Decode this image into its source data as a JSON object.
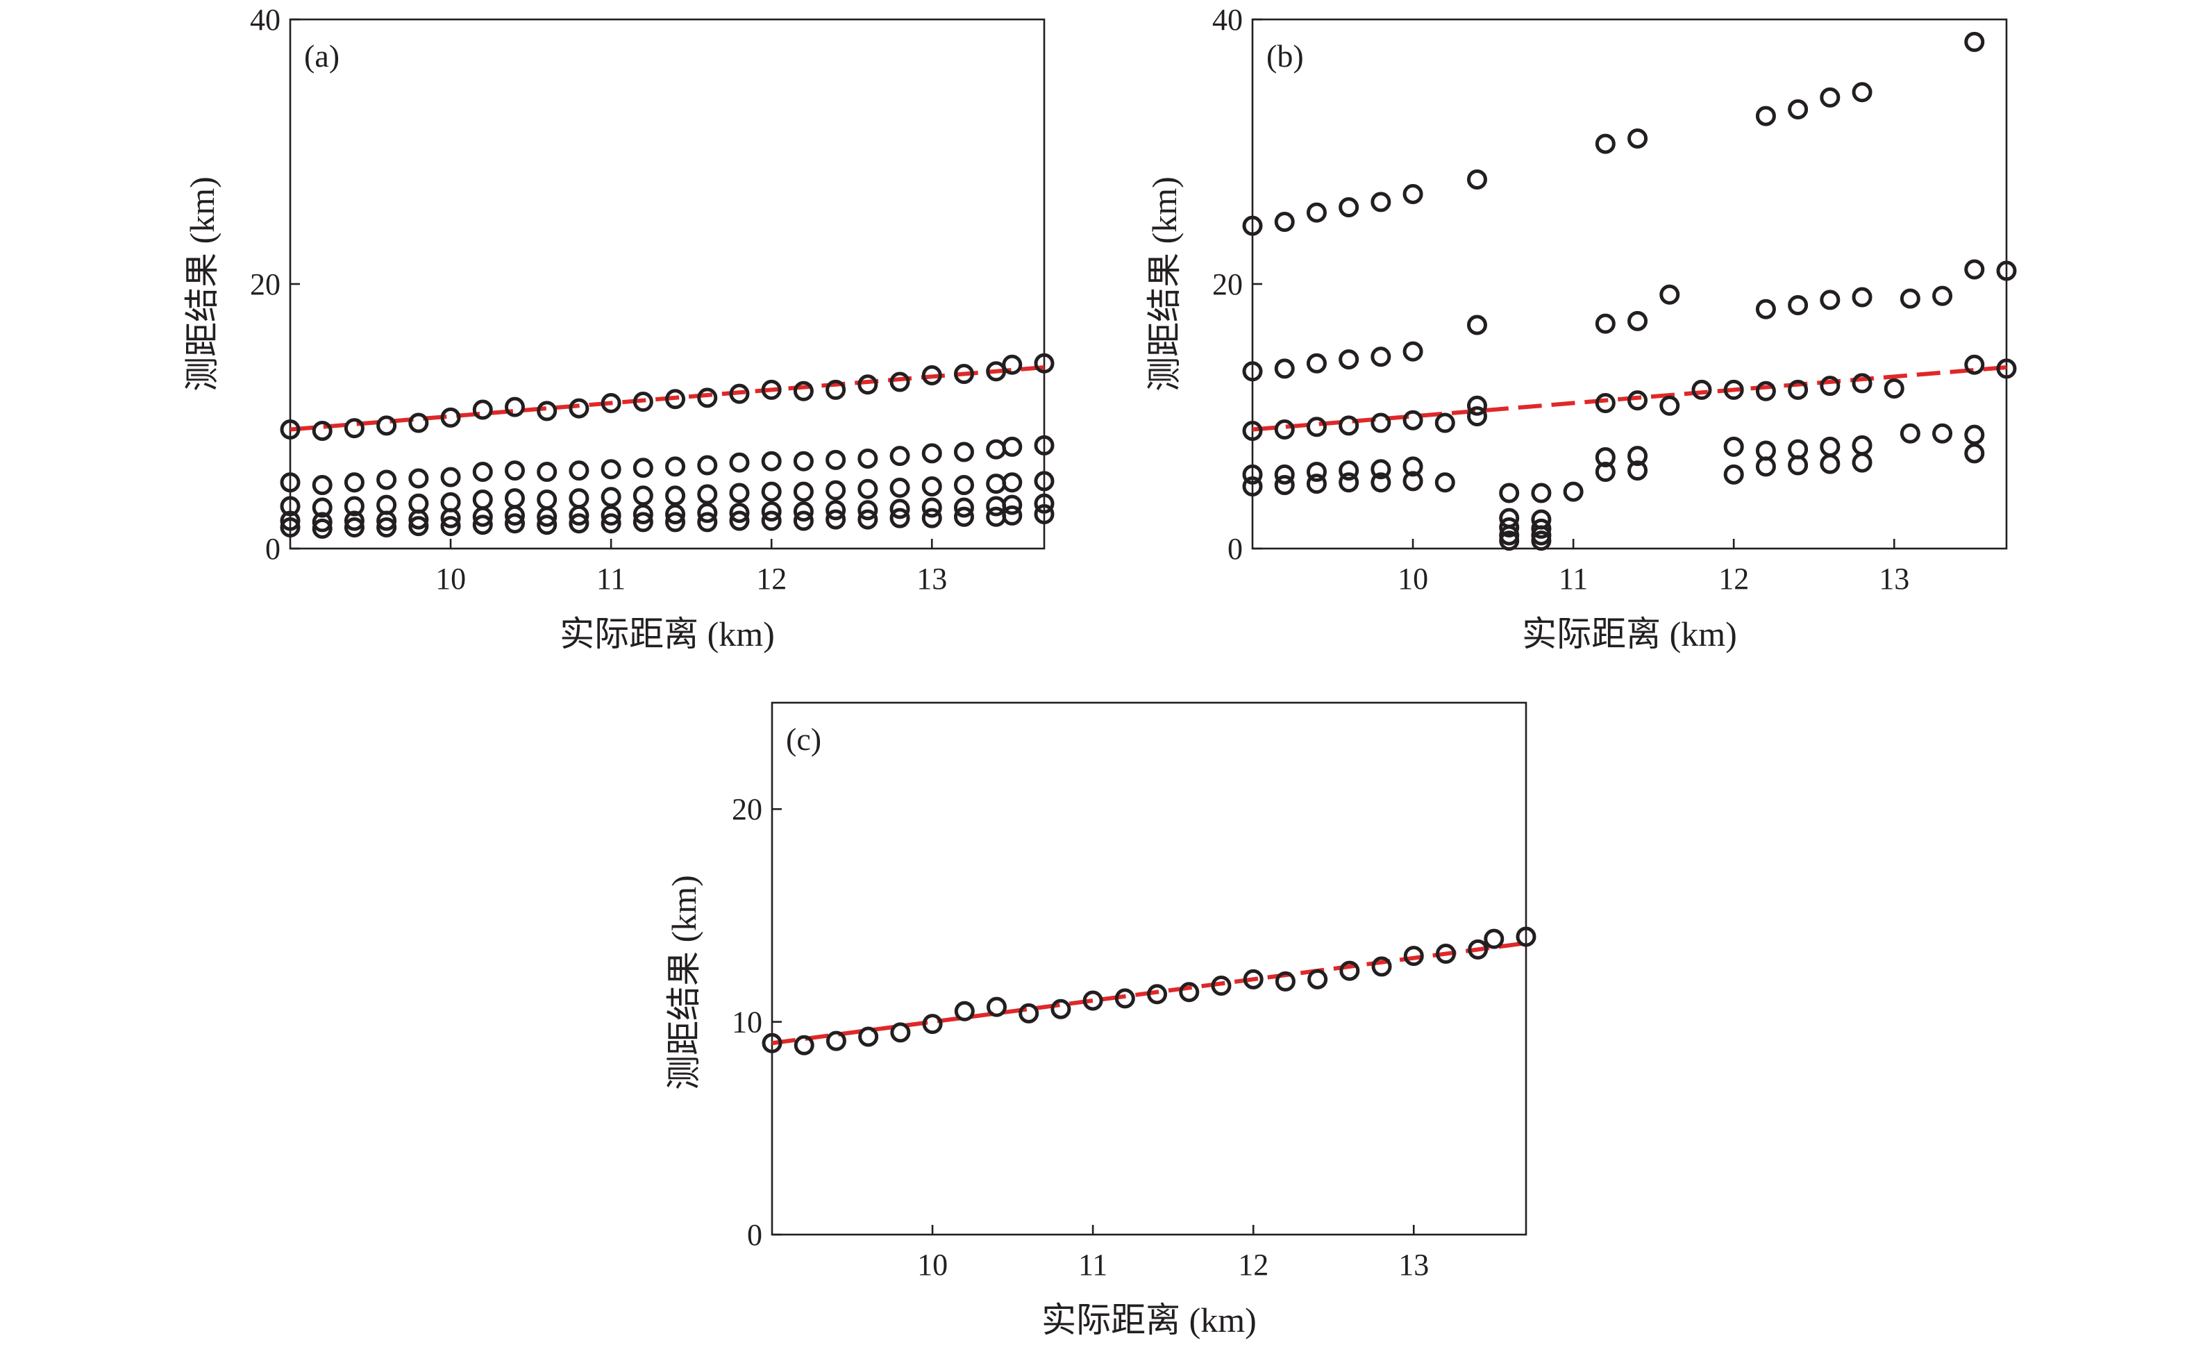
{
  "chart_data": [
    {
      "type": "scatter",
      "panel_label": "(a)",
      "xlabel": "实际距离 (km)",
      "ylabel": "测距结果 (km)",
      "xlim": [
        9.0,
        13.7
      ],
      "ylim": [
        0,
        40
      ],
      "xticks": [
        10,
        11,
        12,
        13
      ],
      "yticks": [
        0,
        20,
        40
      ],
      "points": [
        [
          9.0,
          9.0
        ],
        [
          9.2,
          8.9
        ],
        [
          9.4,
          9.1
        ],
        [
          9.6,
          9.3
        ],
        [
          9.8,
          9.5
        ],
        [
          10.0,
          9.9
        ],
        [
          10.2,
          10.5
        ],
        [
          10.4,
          10.7
        ],
        [
          10.6,
          10.4
        ],
        [
          10.8,
          10.6
        ],
        [
          11.0,
          11.0
        ],
        [
          11.2,
          11.1
        ],
        [
          11.4,
          11.3
        ],
        [
          11.6,
          11.4
        ],
        [
          11.8,
          11.7
        ],
        [
          12.0,
          12.0
        ],
        [
          12.2,
          11.9
        ],
        [
          12.4,
          12.0
        ],
        [
          12.6,
          12.4
        ],
        [
          12.8,
          12.6
        ],
        [
          13.0,
          13.1
        ],
        [
          13.2,
          13.2
        ],
        [
          13.4,
          13.4
        ],
        [
          13.5,
          13.9
        ],
        [
          13.7,
          14.0
        ],
        [
          9.0,
          5.0
        ],
        [
          9.2,
          4.8
        ],
        [
          9.4,
          5.0
        ],
        [
          9.6,
          5.2
        ],
        [
          9.8,
          5.3
        ],
        [
          10.0,
          5.4
        ],
        [
          10.2,
          5.8
        ],
        [
          10.4,
          5.9
        ],
        [
          10.6,
          5.8
        ],
        [
          10.8,
          5.9
        ],
        [
          11.0,
          6.0
        ],
        [
          11.2,
          6.1
        ],
        [
          11.4,
          6.2
        ],
        [
          11.6,
          6.3
        ],
        [
          11.8,
          6.5
        ],
        [
          12.0,
          6.6
        ],
        [
          12.2,
          6.6
        ],
        [
          12.4,
          6.7
        ],
        [
          12.6,
          6.8
        ],
        [
          12.8,
          7.0
        ],
        [
          13.0,
          7.2
        ],
        [
          13.2,
          7.3
        ],
        [
          13.4,
          7.5
        ],
        [
          13.5,
          7.7
        ],
        [
          13.7,
          7.8
        ],
        [
          9.0,
          3.2
        ],
        [
          9.2,
          3.1
        ],
        [
          9.4,
          3.2
        ],
        [
          9.6,
          3.3
        ],
        [
          9.8,
          3.4
        ],
        [
          10.0,
          3.5
        ],
        [
          10.2,
          3.7
        ],
        [
          10.4,
          3.8
        ],
        [
          10.6,
          3.7
        ],
        [
          10.8,
          3.8
        ],
        [
          11.0,
          3.9
        ],
        [
          11.2,
          4.0
        ],
        [
          11.4,
          4.0
        ],
        [
          11.6,
          4.1
        ],
        [
          11.8,
          4.2
        ],
        [
          12.0,
          4.3
        ],
        [
          12.2,
          4.3
        ],
        [
          12.4,
          4.4
        ],
        [
          12.6,
          4.5
        ],
        [
          12.8,
          4.6
        ],
        [
          13.0,
          4.7
        ],
        [
          13.2,
          4.8
        ],
        [
          13.4,
          4.9
        ],
        [
          13.5,
          5.0
        ],
        [
          13.7,
          5.1
        ],
        [
          9.0,
          2.1
        ],
        [
          9.2,
          2.0
        ],
        [
          9.4,
          2.1
        ],
        [
          9.6,
          2.1
        ],
        [
          9.8,
          2.2
        ],
        [
          10.0,
          2.3
        ],
        [
          10.2,
          2.4
        ],
        [
          10.4,
          2.5
        ],
        [
          10.6,
          2.4
        ],
        [
          10.8,
          2.5
        ],
        [
          11.0,
          2.5
        ],
        [
          11.2,
          2.6
        ],
        [
          11.4,
          2.6
        ],
        [
          11.6,
          2.7
        ],
        [
          11.8,
          2.7
        ],
        [
          12.0,
          2.8
        ],
        [
          12.2,
          2.8
        ],
        [
          12.4,
          2.9
        ],
        [
          12.6,
          2.9
        ],
        [
          12.8,
          3.0
        ],
        [
          13.0,
          3.1
        ],
        [
          13.2,
          3.1
        ],
        [
          13.4,
          3.2
        ],
        [
          13.5,
          3.3
        ],
        [
          13.7,
          3.4
        ],
        [
          9.0,
          1.6
        ],
        [
          9.2,
          1.5
        ],
        [
          9.4,
          1.6
        ],
        [
          9.6,
          1.6
        ],
        [
          9.8,
          1.7
        ],
        [
          10.0,
          1.7
        ],
        [
          10.2,
          1.8
        ],
        [
          10.4,
          1.9
        ],
        [
          10.6,
          1.8
        ],
        [
          10.8,
          1.9
        ],
        [
          11.0,
          1.9
        ],
        [
          11.2,
          2.0
        ],
        [
          11.4,
          2.0
        ],
        [
          11.6,
          2.0
        ],
        [
          11.8,
          2.1
        ],
        [
          12.0,
          2.1
        ],
        [
          12.2,
          2.1
        ],
        [
          12.4,
          2.2
        ],
        [
          12.6,
          2.2
        ],
        [
          12.8,
          2.3
        ],
        [
          13.0,
          2.3
        ],
        [
          13.2,
          2.4
        ],
        [
          13.4,
          2.4
        ],
        [
          13.5,
          2.5
        ],
        [
          13.7,
          2.6
        ]
      ],
      "fit_line": [
        [
          9.0,
          9.0
        ],
        [
          13.7,
          13.7
        ]
      ]
    },
    {
      "type": "scatter",
      "panel_label": "(b)",
      "xlabel": "实际距离 (km)",
      "ylabel": "测距结果 (km)",
      "xlim": [
        9.0,
        13.7
      ],
      "ylim": [
        0,
        40
      ],
      "xticks": [
        10,
        11,
        12,
        13
      ],
      "yticks": [
        0,
        20,
        40
      ],
      "points": [
        [
          9.0,
          24.4
        ],
        [
          9.2,
          24.7
        ],
        [
          9.4,
          25.4
        ],
        [
          9.6,
          25.8
        ],
        [
          9.8,
          26.2
        ],
        [
          10.0,
          26.8
        ],
        [
          10.4,
          27.9
        ],
        [
          11.2,
          30.6
        ],
        [
          11.4,
          31.0
        ],
        [
          12.2,
          32.7
        ],
        [
          12.4,
          33.2
        ],
        [
          12.6,
          34.1
        ],
        [
          12.8,
          34.5
        ],
        [
          13.5,
          38.3
        ],
        [
          9.0,
          13.4
        ],
        [
          9.2,
          13.6
        ],
        [
          9.4,
          14.0
        ],
        [
          9.6,
          14.3
        ],
        [
          9.8,
          14.5
        ],
        [
          10.0,
          14.9
        ],
        [
          10.4,
          16.9
        ],
        [
          11.2,
          17.0
        ],
        [
          11.4,
          17.2
        ],
        [
          11.6,
          19.2
        ],
        [
          12.2,
          18.1
        ],
        [
          12.4,
          18.4
        ],
        [
          12.6,
          18.8
        ],
        [
          12.8,
          19.0
        ],
        [
          13.1,
          18.9
        ],
        [
          13.3,
          19.1
        ],
        [
          13.5,
          21.1
        ],
        [
          13.7,
          21.0
        ],
        [
          9.0,
          8.9
        ],
        [
          9.2,
          9.0
        ],
        [
          9.4,
          9.2
        ],
        [
          9.6,
          9.3
        ],
        [
          9.8,
          9.5
        ],
        [
          10.0,
          9.7
        ],
        [
          10.2,
          9.5
        ],
        [
          10.4,
          10.0
        ],
        [
          10.4,
          10.8
        ],
        [
          11.2,
          11.0
        ],
        [
          11.4,
          11.2
        ],
        [
          11.6,
          10.8
        ],
        [
          11.8,
          12.0
        ],
        [
          12.0,
          12.0
        ],
        [
          12.2,
          11.9
        ],
        [
          12.4,
          12.0
        ],
        [
          12.6,
          12.3
        ],
        [
          12.8,
          12.5
        ],
        [
          13.0,
          12.1
        ],
        [
          13.5,
          13.9
        ],
        [
          13.7,
          13.6
        ],
        [
          9.0,
          5.6
        ],
        [
          9.2,
          5.6
        ],
        [
          9.4,
          5.8
        ],
        [
          9.6,
          5.9
        ],
        [
          9.8,
          6.0
        ],
        [
          10.0,
          6.2
        ],
        [
          11.2,
          6.9
        ],
        [
          11.4,
          7.0
        ],
        [
          11.2,
          5.8
        ],
        [
          11.4,
          5.9
        ],
        [
          12.0,
          7.7
        ],
        [
          12.2,
          7.4
        ],
        [
          12.4,
          7.5
        ],
        [
          12.6,
          7.7
        ],
        [
          12.8,
          7.8
        ],
        [
          12.0,
          5.6
        ],
        [
          12.2,
          6.2
        ],
        [
          12.4,
          6.3
        ],
        [
          12.6,
          6.4
        ],
        [
          12.8,
          6.5
        ],
        [
          13.1,
          8.7
        ],
        [
          13.3,
          8.7
        ],
        [
          13.5,
          8.6
        ],
        [
          13.5,
          7.2
        ],
        [
          9.0,
          4.7
        ],
        [
          9.2,
          4.8
        ],
        [
          9.4,
          4.9
        ],
        [
          9.6,
          5.0
        ],
        [
          9.8,
          5.0
        ],
        [
          10.0,
          5.1
        ],
        [
          10.2,
          5.0
        ],
        [
          10.6,
          4.2
        ],
        [
          10.8,
          4.2
        ],
        [
          11.0,
          4.3
        ],
        [
          10.6,
          2.3
        ],
        [
          10.8,
          2.2
        ],
        [
          10.6,
          1.6
        ],
        [
          10.8,
          1.5
        ],
        [
          10.6,
          1.0
        ],
        [
          10.8,
          1.0
        ],
        [
          10.6,
          0.6
        ],
        [
          10.8,
          0.6
        ]
      ],
      "fit_line": [
        [
          9.0,
          9.0
        ],
        [
          13.7,
          13.7
        ]
      ]
    },
    {
      "type": "scatter",
      "panel_label": "(c)",
      "xlabel": "实际距离 (km)",
      "ylabel": "测距结果 (km)",
      "xlim": [
        9.0,
        13.7
      ],
      "ylim": [
        0,
        25
      ],
      "xticks": [
        10,
        11,
        12,
        13
      ],
      "yticks": [
        0,
        10,
        20
      ],
      "points": [
        [
          9.0,
          9.0
        ],
        [
          9.2,
          8.9
        ],
        [
          9.4,
          9.1
        ],
        [
          9.6,
          9.3
        ],
        [
          9.8,
          9.5
        ],
        [
          10.0,
          9.9
        ],
        [
          10.2,
          10.5
        ],
        [
          10.4,
          10.7
        ],
        [
          10.6,
          10.4
        ],
        [
          10.8,
          10.6
        ],
        [
          11.0,
          11.0
        ],
        [
          11.2,
          11.1
        ],
        [
          11.4,
          11.3
        ],
        [
          11.6,
          11.4
        ],
        [
          11.8,
          11.7
        ],
        [
          12.0,
          12.0
        ],
        [
          12.2,
          11.9
        ],
        [
          12.4,
          12.0
        ],
        [
          12.6,
          12.4
        ],
        [
          12.8,
          12.6
        ],
        [
          13.0,
          13.1
        ],
        [
          13.2,
          13.2
        ],
        [
          13.4,
          13.4
        ],
        [
          13.5,
          13.9
        ],
        [
          13.7,
          14.0
        ]
      ],
      "fit_line": [
        [
          9.0,
          9.0
        ],
        [
          13.7,
          13.7
        ]
      ]
    }
  ]
}
